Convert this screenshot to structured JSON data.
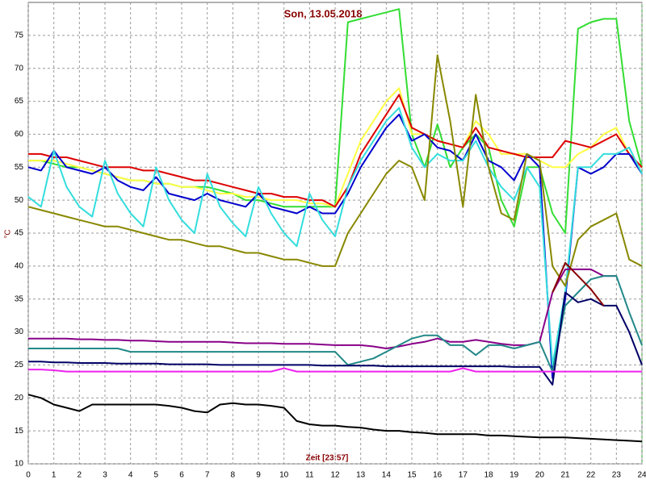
{
  "chart_data": {
    "type": "line",
    "title": "Son, 13.05.2018",
    "xlabel": "Zeit [23:57]",
    "ylabel": "°C",
    "x": [
      0,
      0.5,
      1,
      1.5,
      2,
      2.5,
      3,
      3.5,
      4,
      4.5,
      5,
      5.5,
      6,
      6.5,
      7,
      7.5,
      8,
      8.5,
      9,
      9.5,
      10,
      10.5,
      11,
      11.5,
      12,
      12.5,
      13,
      13.5,
      14,
      14.5,
      15,
      15.5,
      16,
      16.5,
      17,
      17.5,
      18,
      18.5,
      19,
      19.5,
      20,
      20.5,
      21,
      21.5,
      22,
      22.5,
      23,
      23.5,
      24
    ],
    "xlim": [
      0,
      24
    ],
    "xticks": [
      0,
      1,
      2,
      3,
      4,
      5,
      6,
      7,
      8,
      9,
      10,
      11,
      12,
      13,
      14,
      15,
      16,
      17,
      18,
      19,
      20,
      21,
      22,
      23,
      24
    ],
    "ylim": [
      10,
      80
    ],
    "yticks": [
      10,
      15,
      20,
      25,
      30,
      35,
      40,
      45,
      50,
      55,
      60,
      65,
      70,
      75
    ],
    "grid": true,
    "series": [
      {
        "color": "#33dd33",
        "values": [
          56,
          56,
          55.5,
          55,
          55,
          54.5,
          54,
          53.5,
          53,
          53,
          52.5,
          52.5,
          52,
          52,
          52,
          51.5,
          51,
          50,
          50,
          49.5,
          49,
          49,
          49,
          49,
          49,
          77,
          77.5,
          78,
          78.5,
          79,
          60,
          55,
          61.5,
          55,
          58,
          60,
          58,
          50,
          46,
          55,
          55,
          48,
          45,
          76,
          77,
          77.5,
          77.5,
          62,
          55
        ]
      },
      {
        "color": "#ffff44",
        "values": [
          56,
          56,
          56,
          55.5,
          55,
          54.5,
          54,
          53.5,
          53,
          53,
          52.5,
          52.5,
          52,
          52,
          51.5,
          51,
          51,
          50.5,
          50.5,
          50,
          50,
          50,
          49.5,
          49.5,
          49,
          54,
          59,
          62,
          65,
          67,
          60,
          60,
          59,
          58.5,
          58,
          62,
          60,
          57,
          57,
          57,
          56,
          55,
          55,
          57,
          58,
          60,
          61,
          57,
          55
        ]
      },
      {
        "color": "#dd0000",
        "values": [
          57,
          57,
          56.5,
          56.5,
          56,
          55.5,
          55,
          55,
          55,
          54.5,
          54.5,
          54,
          53.5,
          53,
          53,
          52.5,
          52,
          51.5,
          51,
          51,
          50.5,
          50.5,
          50,
          50,
          49,
          52,
          57,
          60,
          63,
          66,
          61,
          60,
          59,
          58.5,
          58,
          61,
          58,
          57.5,
          57,
          56.5,
          56.5,
          56.5,
          59,
          58.5,
          58,
          59,
          60,
          57,
          55
        ]
      },
      {
        "color": "#0000cc",
        "values": [
          55,
          54.5,
          57.5,
          55,
          54.5,
          54,
          55,
          53,
          52,
          51.5,
          53.5,
          51,
          50.5,
          50,
          51,
          50,
          49.5,
          49,
          51,
          49,
          48.5,
          48,
          49,
          48,
          48,
          51,
          55,
          58,
          61,
          63,
          59,
          60,
          58,
          57.5,
          56,
          60,
          56,
          55,
          53,
          57,
          55,
          23,
          35,
          55,
          54,
          55,
          57,
          57,
          54
        ]
      },
      {
        "color": "#33dddd",
        "values": [
          50.5,
          49,
          57.5,
          52,
          49,
          47.5,
          56,
          51,
          48,
          46,
          55,
          50,
          47,
          45,
          54,
          49,
          46.5,
          44.5,
          52,
          48,
          45,
          43,
          51,
          47,
          44.5,
          52,
          56,
          59,
          62,
          64,
          58,
          55,
          57,
          56,
          56,
          59,
          55,
          52,
          50,
          55,
          52,
          25,
          36,
          55,
          55,
          57,
          57,
          58,
          54
        ]
      },
      {
        "color": "#888800",
        "values": [
          49,
          48.5,
          48,
          47.5,
          47,
          46.5,
          46,
          46,
          45.5,
          45,
          44.5,
          44,
          44,
          43.5,
          43,
          43,
          42.5,
          42,
          42,
          41.5,
          41,
          41,
          40.5,
          40,
          40,
          45,
          48,
          51,
          54,
          56,
          55,
          50,
          72,
          62,
          49,
          66,
          55,
          48,
          47,
          57,
          56,
          40,
          37,
          44,
          46,
          47,
          48,
          41,
          40
        ]
      },
      {
        "color": "#880088",
        "values": [
          29,
          29,
          29,
          29,
          28.9,
          28.9,
          28.8,
          28.8,
          28.7,
          28.7,
          28.6,
          28.5,
          28.5,
          28.5,
          28.5,
          28.5,
          28.4,
          28.3,
          28.3,
          28.3,
          28.2,
          28.2,
          28.2,
          28.1,
          28,
          28,
          28,
          27.8,
          27.5,
          27.8,
          28.2,
          28.5,
          29,
          28.5,
          28.5,
          28.8,
          28.5,
          28.2,
          28,
          28,
          28.5,
          36,
          39.5,
          39.5,
          39.5,
          38.5,
          38.5,
          null,
          null
        ]
      },
      {
        "color": "#228888",
        "values": [
          27.5,
          27.5,
          27.5,
          27.5,
          27.5,
          27.5,
          27.5,
          27.5,
          27,
          27,
          27,
          27,
          27,
          27,
          27,
          27,
          27,
          27,
          27,
          27,
          27,
          27,
          27,
          27,
          27,
          25,
          25.5,
          26,
          27,
          28,
          29,
          29.5,
          29.5,
          28,
          28,
          26.5,
          28,
          28,
          27.5,
          28,
          28.5,
          24,
          34,
          36,
          38,
          38.5,
          38.5,
          33,
          28
        ]
      },
      {
        "color": "#000066",
        "values": [
          25.5,
          25.5,
          25.4,
          25.4,
          25.3,
          25.3,
          25.3,
          25.2,
          25.2,
          25.2,
          25.2,
          25.1,
          25.1,
          25.1,
          25.1,
          25,
          25,
          25,
          25,
          25,
          25,
          25,
          25,
          24.9,
          24.9,
          24.9,
          24.9,
          24.9,
          24.8,
          24.8,
          24.8,
          24.8,
          24.8,
          24.8,
          24.8,
          24.8,
          24.8,
          24.8,
          24.7,
          24.7,
          24.7,
          22,
          36,
          34.5,
          35,
          34,
          34,
          30,
          25
        ]
      },
      {
        "color": "#ee22ee",
        "values": [
          24.3,
          24.3,
          24.2,
          24,
          24,
          24,
          24,
          24,
          24,
          24,
          24,
          24,
          24,
          24,
          24,
          24,
          24,
          24,
          24,
          24,
          24.5,
          24,
          24,
          24,
          24,
          24,
          24,
          24,
          24,
          24,
          24,
          24,
          24,
          24,
          24.5,
          24,
          24,
          24,
          24,
          24,
          24,
          24,
          24,
          24,
          24,
          24,
          24,
          24,
          24
        ]
      },
      {
        "color": "#000000",
        "values": [
          20.5,
          20,
          19,
          18.5,
          18,
          19,
          19,
          19,
          19,
          19,
          19,
          18.8,
          18.5,
          18,
          17.8,
          19,
          19.2,
          19,
          19,
          18.8,
          18.5,
          16.5,
          16,
          15.8,
          15.8,
          15.6,
          15.5,
          15.2,
          15,
          15,
          14.8,
          14.7,
          14.5,
          14.5,
          14.5,
          14.5,
          14.3,
          14.3,
          14.2,
          14.1,
          14,
          14,
          14,
          13.9,
          13.8,
          13.7,
          13.6,
          13.5,
          13.4
        ]
      },
      {
        "color": "#880000",
        "values": [
          null,
          null,
          null,
          null,
          null,
          null,
          null,
          null,
          null,
          null,
          null,
          null,
          null,
          null,
          null,
          null,
          null,
          null,
          null,
          null,
          null,
          null,
          null,
          null,
          null,
          null,
          null,
          null,
          null,
          null,
          null,
          null,
          null,
          null,
          null,
          null,
          null,
          null,
          null,
          null,
          null,
          36,
          40.5,
          38.5,
          36.5,
          34,
          null,
          null,
          null
        ]
      }
    ]
  }
}
